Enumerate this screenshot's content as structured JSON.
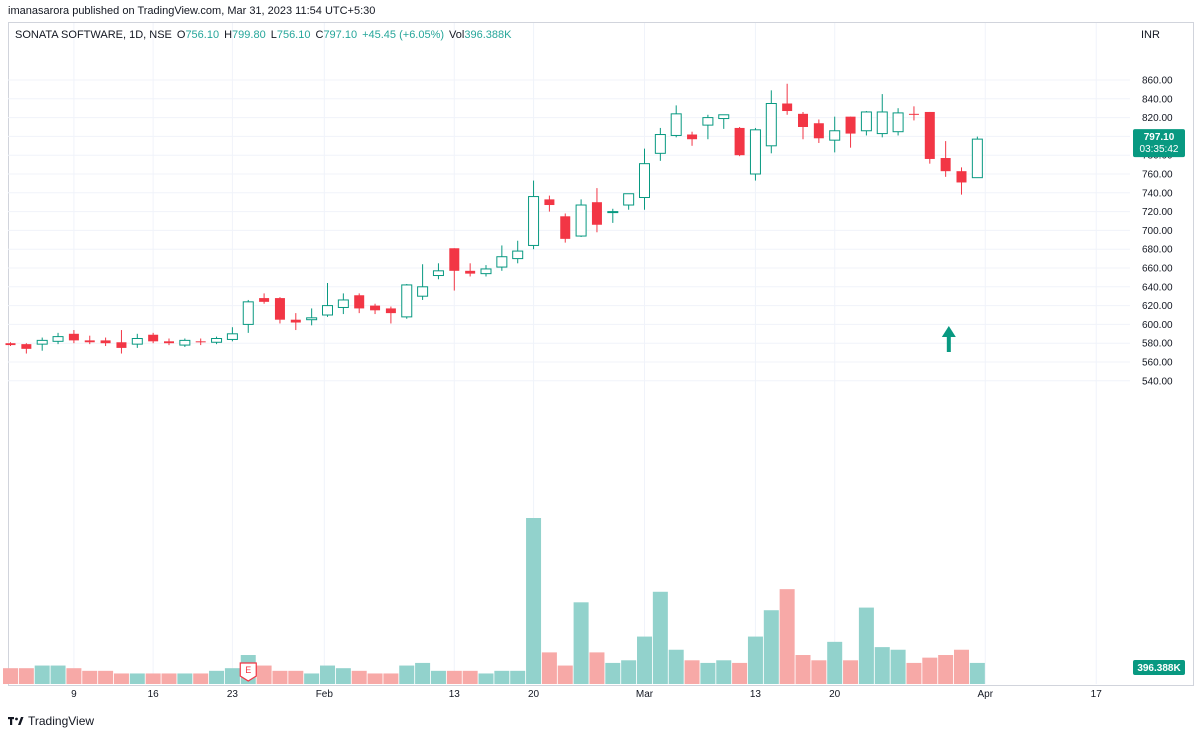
{
  "header": {
    "published": "imanasarora published on TradingView.com, Mar 31, 2023 11:54 UTC+5:30",
    "symbol": "SONATA SOFTWARE, 1D, NSE",
    "o_label": "O",
    "o_value": "756.10",
    "h_label": "H",
    "h_value": "799.80",
    "l_label": "L",
    "l_value": "756.10",
    "c_label": "C",
    "c_value": "797.10",
    "change": "+45.45 (+6.05%)",
    "vol_label": "Vol",
    "vol_value": "396.388K",
    "currency": "INR"
  },
  "price_badge": {
    "price": "797.10",
    "countdown": "03:35:42"
  },
  "volume_badge": "396.388K",
  "footer": {
    "brand": "TradingView"
  },
  "colors": {
    "up": "#089981",
    "down": "#f23645",
    "vol_up": "#92d2cc",
    "vol_down": "#f7a9a7",
    "grid": "#f0f3fa",
    "arrow": "#089981"
  },
  "chart_data": {
    "type": "candlestick",
    "y_range": [
      540,
      870
    ],
    "y_ticks": [
      "860.00",
      "840.00",
      "820.00",
      "800.00",
      "780.00",
      "760.00",
      "740.00",
      "720.00",
      "700.00",
      "680.00",
      "660.00",
      "640.00",
      "620.00",
      "600.00",
      "580.00",
      "560.00",
      "540.00"
    ],
    "x_ticks": [
      "9",
      "16",
      "23",
      "Feb",
      "13",
      "20",
      "Mar",
      "13",
      "20",
      "Apr",
      "17"
    ],
    "earnings_marker": "E",
    "annotation": "up-arrow",
    "candles": [
      {
        "o": 580,
        "h": 581,
        "l": 577,
        "c": 578
      },
      {
        "o": 579,
        "h": 580,
        "l": 569,
        "c": 574
      },
      {
        "o": 579,
        "h": 586,
        "l": 572,
        "c": 583
      },
      {
        "o": 582,
        "h": 591,
        "l": 579,
        "c": 587
      },
      {
        "o": 590,
        "h": 594,
        "l": 580,
        "c": 583
      },
      {
        "o": 583,
        "h": 588,
        "l": 579,
        "c": 581
      },
      {
        "o": 583,
        "h": 586,
        "l": 577,
        "c": 580
      },
      {
        "o": 581,
        "h": 594,
        "l": 569,
        "c": 575
      },
      {
        "o": 579,
        "h": 590,
        "l": 575,
        "c": 585
      },
      {
        "o": 589,
        "h": 591,
        "l": 580,
        "c": 582
      },
      {
        "o": 582,
        "h": 585,
        "l": 578,
        "c": 580
      },
      {
        "o": 578,
        "h": 585,
        "l": 576,
        "c": 583
      },
      {
        "o": 582,
        "h": 585,
        "l": 578,
        "c": 581
      },
      {
        "o": 581,
        "h": 587,
        "l": 579,
        "c": 585
      },
      {
        "o": 584,
        "h": 597,
        "l": 582,
        "c": 590
      },
      {
        "o": 600,
        "h": 626,
        "l": 591,
        "c": 624
      },
      {
        "o": 628,
        "h": 633,
        "l": 622,
        "c": 624
      },
      {
        "o": 628,
        "h": 629,
        "l": 601,
        "c": 605
      },
      {
        "o": 605,
        "h": 612,
        "l": 594,
        "c": 602
      },
      {
        "o": 605,
        "h": 617,
        "l": 599,
        "c": 607
      },
      {
        "o": 610,
        "h": 644,
        "l": 608,
        "c": 620
      },
      {
        "o": 618,
        "h": 633,
        "l": 611,
        "c": 626
      },
      {
        "o": 631,
        "h": 633,
        "l": 612,
        "c": 617
      },
      {
        "o": 620,
        "h": 622,
        "l": 611,
        "c": 615
      },
      {
        "o": 617,
        "h": 619,
        "l": 601,
        "c": 612
      },
      {
        "o": 608,
        "h": 643,
        "l": 606,
        "c": 642
      },
      {
        "o": 630,
        "h": 664,
        "l": 626,
        "c": 640
      },
      {
        "o": 652,
        "h": 665,
        "l": 648,
        "c": 657
      },
      {
        "o": 681,
        "h": 681,
        "l": 636,
        "c": 657
      },
      {
        "o": 657,
        "h": 665,
        "l": 651,
        "c": 654
      },
      {
        "o": 654,
        "h": 663,
        "l": 651,
        "c": 659
      },
      {
        "o": 661,
        "h": 684,
        "l": 657,
        "c": 672
      },
      {
        "o": 670,
        "h": 689,
        "l": 665,
        "c": 678
      },
      {
        "o": 684,
        "h": 753,
        "l": 680,
        "c": 736
      },
      {
        "o": 733,
        "h": 737,
        "l": 720,
        "c": 727
      },
      {
        "o": 715,
        "h": 718,
        "l": 687,
        "c": 691
      },
      {
        "o": 694,
        "h": 733,
        "l": 693,
        "c": 727
      },
      {
        "o": 730,
        "h": 745,
        "l": 698,
        "c": 706
      },
      {
        "o": 720,
        "h": 723,
        "l": 708,
        "c": 720
      },
      {
        "o": 727,
        "h": 739,
        "l": 722,
        "c": 739
      },
      {
        "o": 735,
        "h": 787,
        "l": 722,
        "c": 771
      },
      {
        "o": 782,
        "h": 809,
        "l": 774,
        "c": 802
      },
      {
        "o": 801,
        "h": 833,
        "l": 799,
        "c": 824
      },
      {
        "o": 802,
        "h": 805,
        "l": 790,
        "c": 797
      },
      {
        "o": 812,
        "h": 823,
        "l": 797,
        "c": 820
      },
      {
        "o": 819,
        "h": 823,
        "l": 808,
        "c": 823
      },
      {
        "o": 809,
        "h": 810,
        "l": 779,
        "c": 780
      },
      {
        "o": 760,
        "h": 809,
        "l": 753,
        "c": 807
      },
      {
        "o": 790,
        "h": 849,
        "l": 782,
        "c": 835
      },
      {
        "o": 835,
        "h": 856,
        "l": 823,
        "c": 827
      },
      {
        "o": 824,
        "h": 826,
        "l": 797,
        "c": 810
      },
      {
        "o": 814,
        "h": 818,
        "l": 793,
        "c": 798
      },
      {
        "o": 796,
        "h": 821,
        "l": 783,
        "c": 806
      },
      {
        "o": 821,
        "h": 821,
        "l": 788,
        "c": 803
      },
      {
        "o": 806,
        "h": 827,
        "l": 801,
        "c": 826
      },
      {
        "o": 803,
        "h": 845,
        "l": 799,
        "c": 826
      },
      {
        "o": 805,
        "h": 830,
        "l": 801,
        "c": 825
      },
      {
        "o": 824,
        "h": 832,
        "l": 817,
        "c": 823
      },
      {
        "o": 826,
        "h": 826,
        "l": 771,
        "c": 776
      },
      {
        "o": 777,
        "h": 795,
        "l": 757,
        "c": 763
      },
      {
        "o": 763,
        "h": 767,
        "l": 738,
        "c": 751
      },
      {
        "o": 756.1,
        "h": 799.8,
        "l": 756.1,
        "c": 797.1
      }
    ],
    "volumes": [
      0.6,
      0.6,
      0.7,
      0.7,
      0.6,
      0.5,
      0.5,
      0.4,
      0.4,
      0.4,
      0.4,
      0.4,
      0.4,
      0.5,
      0.6,
      1.1,
      0.7,
      0.5,
      0.5,
      0.4,
      0.7,
      0.6,
      0.5,
      0.4,
      0.4,
      0.7,
      0.8,
      0.5,
      0.5,
      0.5,
      0.4,
      0.5,
      0.5,
      6.3,
      1.2,
      0.7,
      3.1,
      1.2,
      0.8,
      0.9,
      1.8,
      3.5,
      1.3,
      0.9,
      0.8,
      0.9,
      0.8,
      1.8,
      2.8,
      3.6,
      1.1,
      0.9,
      1.6,
      0.9,
      2.9,
      1.4,
      1.3,
      0.8,
      1.0,
      1.1,
      1.3,
      0.8
    ]
  }
}
